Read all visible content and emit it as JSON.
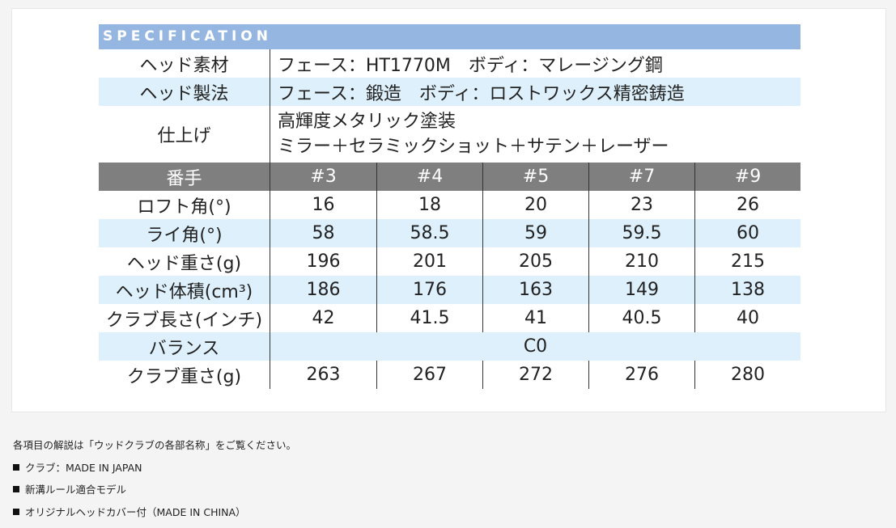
{
  "spec": {
    "title": "SPECIFICATION",
    "colors": {
      "header_band": "#95b6e0",
      "stripe": "#ddf0fb",
      "gray_header": "#7f7f7f"
    },
    "info_rows": [
      {
        "label": "ヘッド素材",
        "value": "フェース：HT1770M　ボディ：マレージング鋼"
      },
      {
        "label": "ヘッド製法",
        "value": "フェース：鍛造　ボディ：ロストワックス精密鋳造"
      },
      {
        "label": "仕上げ",
        "lines": [
          "高輝度メタリック塗装",
          "ミラー＋セラミックショット＋サテン＋レーザー"
        ]
      }
    ],
    "columns_header": {
      "label": "番手",
      "columns": [
        "#3",
        "#4",
        "#5",
        "#7",
        "#9"
      ]
    },
    "rows": [
      {
        "label": "ロフト角(°)",
        "values": [
          "16",
          "18",
          "20",
          "23",
          "26"
        ]
      },
      {
        "label": "ライ角(°)",
        "values": [
          "58",
          "58.5",
          "59",
          "59.5",
          "60"
        ]
      },
      {
        "label": "ヘッド重さ(g)",
        "values": [
          "196",
          "201",
          "205",
          "210",
          "215"
        ]
      },
      {
        "label": "ヘッド体積(cm³)",
        "values": [
          "186",
          "176",
          "163",
          "149",
          "138"
        ]
      },
      {
        "label": "クラブ長さ(インチ)",
        "values": [
          "42",
          "41.5",
          "41",
          "40.5",
          "40"
        ]
      },
      {
        "label": "バランス",
        "merged_value": "C0"
      },
      {
        "label": "クラブ重さ(g)",
        "values": [
          "263",
          "267",
          "272",
          "276",
          "280"
        ]
      }
    ]
  },
  "notes": {
    "intro": "各項目の解説は「ウッドクラブの各部名称」をご覧ください。",
    "bullets": [
      "クラブ：MADE IN JAPAN",
      "新溝ルール適合モデル",
      "オリジナルヘッドカバー付（MADE IN CHINA）"
    ]
  }
}
